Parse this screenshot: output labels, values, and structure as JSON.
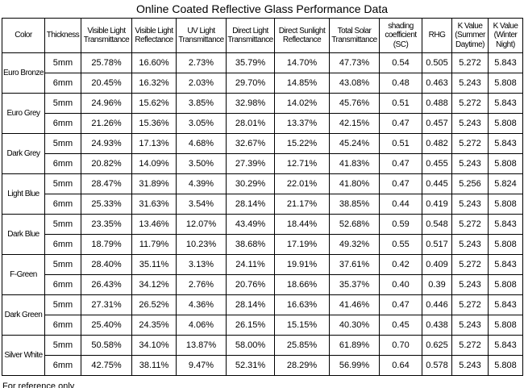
{
  "chart_data": {
    "type": "table",
    "title": "Online Coated Reflective Glass Performance Data",
    "footnote": "For reference only",
    "columns": [
      "Color",
      "Thickness",
      "Visible Light Transmittance",
      "Visible Light Reflectance",
      "UV Light Transmittance",
      "Direct Light Transmittance",
      "Direct Sunlight Reflectance",
      "Total Solar Transmittance",
      "shading coefficient (SC)",
      "RHG",
      "K Value (Summer Daytime)",
      "K Value (Winter Night)"
    ],
    "groups": [
      {
        "color": "Euro Bronze",
        "rows": [
          {
            "thickness": "5mm",
            "values": [
              "25.78%",
              "16.60%",
              "2.73%",
              "35.79%",
              "14.70%",
              "47.73%",
              "0.54",
              "0.505",
              "5.272",
              "5.843"
            ]
          },
          {
            "thickness": "6mm",
            "values": [
              "20.45%",
              "16.32%",
              "2.03%",
              "29.70%",
              "14.85%",
              "43.08%",
              "0.48",
              "0.463",
              "5.243",
              "5.808"
            ]
          }
        ]
      },
      {
        "color": "Euro Grey",
        "rows": [
          {
            "thickness": "5mm",
            "values": [
              "24.96%",
              "15.62%",
              "3.85%",
              "32.98%",
              "14.02%",
              "45.76%",
              "0.51",
              "0.488",
              "5.272",
              "5.843"
            ]
          },
          {
            "thickness": "6mm",
            "values": [
              "21.26%",
              "15.36%",
              "3.05%",
              "28.01%",
              "13.37%",
              "42.15%",
              "0.47",
              "0.457",
              "5.243",
              "5.808"
            ]
          }
        ]
      },
      {
        "color": "Dark Grey",
        "rows": [
          {
            "thickness": "5mm",
            "values": [
              "24.93%",
              "17.13%",
              "4.68%",
              "32.67%",
              "15.22%",
              "45.24%",
              "0.51",
              "0.482",
              "5.272",
              "5.843"
            ]
          },
          {
            "thickness": "6mm",
            "values": [
              "20.82%",
              "14.09%",
              "3.50%",
              "27.39%",
              "12.71%",
              "41.83%",
              "0.47",
              "0.455",
              "5.243",
              "5.808"
            ]
          }
        ]
      },
      {
        "color": "Light Blue",
        "rows": [
          {
            "thickness": "5mm",
            "values": [
              "28.47%",
              "31.89%",
              "4.39%",
              "30.29%",
              "22.01%",
              "41.80%",
              "0.47",
              "0.445",
              "5.256",
              "5.824"
            ]
          },
          {
            "thickness": "6mm",
            "values": [
              "25.33%",
              "31.63%",
              "3.54%",
              "28.14%",
              "21.17%",
              "38.85%",
              "0.44",
              "0.419",
              "5.243",
              "5.808"
            ]
          }
        ]
      },
      {
        "color": "Dark Blue",
        "rows": [
          {
            "thickness": "5mm",
            "values": [
              "23.35%",
              "13.46%",
              "12.07%",
              "43.49%",
              "18.44%",
              "52.68%",
              "0.59",
              "0.548",
              "5.272",
              "5.843"
            ]
          },
          {
            "thickness": "6mm",
            "values": [
              "18.79%",
              "11.79%",
              "10.23%",
              "38.68%",
              "17.19%",
              "49.32%",
              "0.55",
              "0.517",
              "5.243",
              "5.808"
            ]
          }
        ]
      },
      {
        "color": "F-Green",
        "rows": [
          {
            "thickness": "5mm",
            "values": [
              "28.40%",
              "35.11%",
              "3.13%",
              "24.11%",
              "19.91%",
              "37.61%",
              "0.42",
              "0.409",
              "5.272",
              "5.843"
            ]
          },
          {
            "thickness": "6mm",
            "values": [
              "26.43%",
              "34.12%",
              "2.76%",
              "20.76%",
              "18.66%",
              "35.37%",
              "0.40",
              "0.39",
              "5.243",
              "5.808"
            ]
          }
        ]
      },
      {
        "color": "Dark Green",
        "rows": [
          {
            "thickness": "5mm",
            "values": [
              "27.31%",
              "26.52%",
              "4.36%",
              "28.14%",
              "16.63%",
              "41.46%",
              "0.47",
              "0.446",
              "5.272",
              "5.843"
            ]
          },
          {
            "thickness": "6mm",
            "values": [
              "25.40%",
              "24.35%",
              "4.06%",
              "26.15%",
              "15.15%",
              "40.30%",
              "0.45",
              "0.438",
              "5.243",
              "5.808"
            ]
          }
        ]
      },
      {
        "color": "Silver White",
        "rows": [
          {
            "thickness": "5mm",
            "values": [
              "50.58%",
              "34.10%",
              "13.87%",
              "58.00%",
              "25.85%",
              "61.89%",
              "0.70",
              "0.625",
              "5.272",
              "5.843"
            ]
          },
          {
            "thickness": "6mm",
            "values": [
              "42.75%",
              "38.11%",
              "9.47%",
              "52.31%",
              "28.29%",
              "56.99%",
              "0.64",
              "0.578",
              "5.243",
              "5.808"
            ]
          }
        ]
      }
    ],
    "colors": {
      "grid": "#000000",
      "text": "#000000",
      "background": "#ffffff"
    }
  }
}
